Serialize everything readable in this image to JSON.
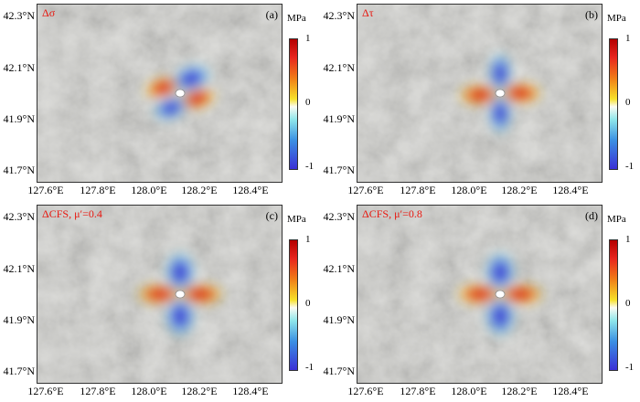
{
  "axes": {
    "y_ticks": [
      "42.3°N",
      "42.1°N",
      "41.9°N",
      "41.7°N"
    ],
    "x_ticks": [
      "127.6°E",
      "127.8°E",
      "128.0°E",
      "128.2°E",
      "128.4°E"
    ]
  },
  "colorbar": {
    "unit": "MPa",
    "ticks": [
      "1",
      "0",
      "-1"
    ],
    "colors": {
      "max": "#b40000",
      "zero": "#fbfbf3",
      "min": "#3b2fd6"
    }
  },
  "panels": [
    {
      "title": "Δσ",
      "label": "(a)",
      "pattern": "sigma"
    },
    {
      "title": "Δτ",
      "label": "(b)",
      "pattern": "tau"
    },
    {
      "title": "ΔCFS, μ′=0.4",
      "label": "(c)",
      "pattern": "cfs"
    },
    {
      "title": "ΔCFS, μ′=0.8",
      "label": "(d)",
      "pattern": "cfs"
    }
  ]
}
